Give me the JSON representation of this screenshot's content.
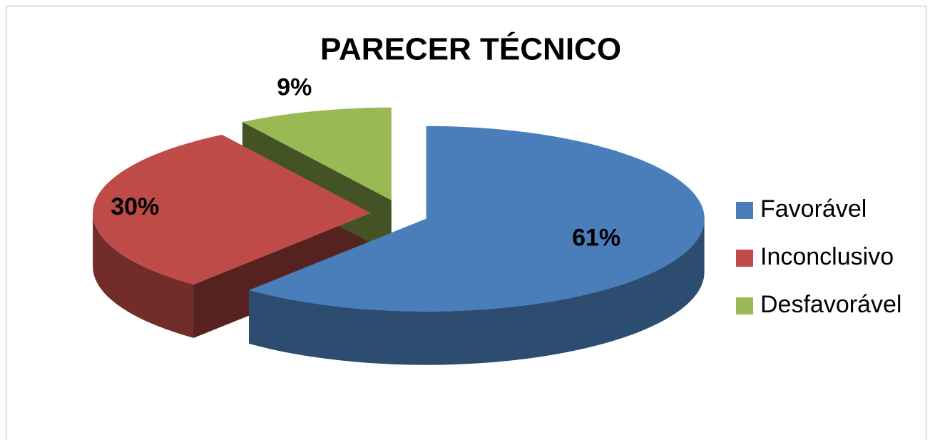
{
  "chart_data": {
    "type": "pie",
    "title": "PARECER TÉCNICO",
    "categories": [
      "Favorável",
      "Inconclusivo",
      "Desfavorável"
    ],
    "values": [
      61,
      30,
      9
    ],
    "value_labels": [
      "61%",
      "30%",
      "9%"
    ],
    "colors": [
      "#4a7ebb",
      "#be4b48",
      "#98b954"
    ],
    "legend": "right"
  }
}
